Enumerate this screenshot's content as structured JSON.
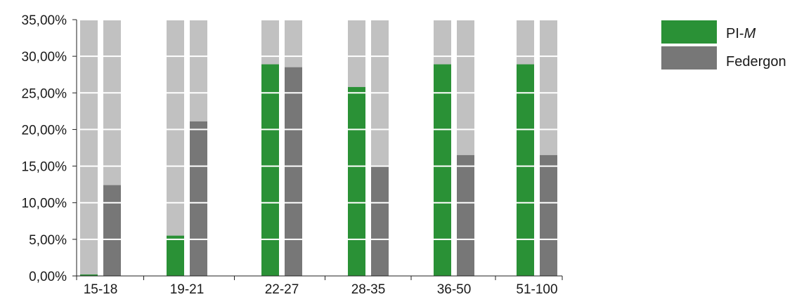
{
  "chart_data": {
    "type": "bar",
    "categories": [
      "15-18",
      "19-21",
      "22-27",
      "28-35",
      "36-50",
      "51-100"
    ],
    "series": [
      {
        "name_prefix": "PI-",
        "name_italic": "M",
        "color": "#2a9136",
        "values": [
          0.2,
          5.5,
          28.9,
          25.8,
          28.9,
          28.9
        ]
      },
      {
        "name": "Federgon",
        "color": "#777777",
        "values": [
          12.4,
          21.1,
          28.5,
          15.0,
          16.5,
          16.5
        ]
      }
    ],
    "ylim": [
      0,
      35
    ],
    "yticks": [
      "0,00%",
      "5,00%",
      "10,00%",
      "15,00%",
      "20,00%",
      "25,00%",
      "30,00%",
      "35,00%"
    ],
    "background_bar_color": "#c1c1c1",
    "gridlines": true,
    "legend_position": "top-right"
  }
}
